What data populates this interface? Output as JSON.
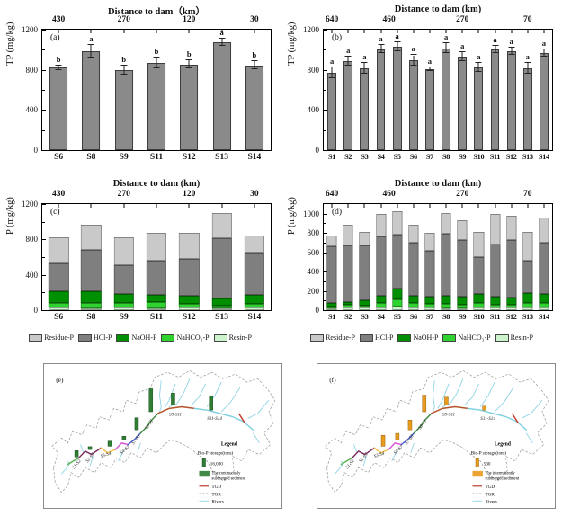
{
  "chart_data": [
    {
      "id": "a",
      "type": "bar",
      "panel": "(a)",
      "title": "Distance to dam（km）",
      "ylabel": "TP (mg/kg)",
      "ylim": [
        0,
        1200
      ],
      "yticks": [
        0,
        400,
        800,
        1200
      ],
      "yminor": [
        200,
        600,
        1000
      ],
      "top_axis_labels": [
        {
          "text": "430",
          "at": 0
        },
        {
          "text": "270",
          "at": 2
        },
        {
          "text": "120",
          "at": 4
        },
        {
          "text": "30",
          "at": 6
        }
      ],
      "categories": [
        "S6",
        "S8",
        "S9",
        "S11",
        "S12",
        "S13",
        "S14"
      ],
      "values": [
        820,
        985,
        800,
        870,
        855,
        1075,
        845
      ],
      "errors": [
        25,
        60,
        45,
        55,
        40,
        35,
        40
      ],
      "letters": [
        "b",
        "a",
        "b",
        "b",
        "b",
        "a",
        "b"
      ]
    },
    {
      "id": "b",
      "type": "bar",
      "panel": "(b)",
      "title": "Distance to dam (km)",
      "ylabel": "TP (mg/kg)",
      "ylim": [
        0,
        1200
      ],
      "yticks": [
        0,
        400,
        800,
        1200
      ],
      "yminor": [
        200,
        600,
        1000
      ],
      "top_axis_labels": [
        {
          "text": "640",
          "at": 0
        },
        {
          "text": "460",
          "at": 3.5
        },
        {
          "text": "270",
          "at": 8
        },
        {
          "text": "70",
          "at": 12
        }
      ],
      "categories": [
        "S1",
        "S2",
        "S3",
        "S4",
        "S5",
        "S6",
        "S7",
        "S8",
        "S9",
        "S10",
        "S11",
        "S12",
        "S13",
        "S14"
      ],
      "values": [
        770,
        890,
        815,
        1005,
        1030,
        895,
        805,
        1015,
        930,
        820,
        1000,
        985,
        815,
        965
      ],
      "errors": [
        55,
        45,
        55,
        40,
        45,
        50,
        20,
        50,
        45,
        45,
        35,
        35,
        50,
        35
      ],
      "letters": [
        "a",
        "a",
        "a",
        "a",
        "a",
        "a",
        "a",
        "a",
        "a",
        "a",
        "a",
        "a",
        "a",
        "a"
      ]
    },
    {
      "id": "c",
      "type": "stacked-bar",
      "panel": "(c)",
      "title": "Distance to dam (km)",
      "ylabel": "P (mg/kg)",
      "ylim": [
        0,
        1200
      ],
      "yticks": [
        0,
        400,
        800,
        1200
      ],
      "yminor": [
        200,
        600,
        1000
      ],
      "top_axis_labels": [
        {
          "text": "430",
          "at": 0
        },
        {
          "text": "270",
          "at": 2
        },
        {
          "text": "120",
          "at": 4
        },
        {
          "text": "30",
          "at": 6
        }
      ],
      "categories": [
        "S6",
        "S8",
        "S9",
        "S11",
        "S12",
        "S13",
        "S14"
      ],
      "series": [
        {
          "name": "Resin-P",
          "color": "#cdf3cd",
          "values": [
            30,
            25,
            35,
            25,
            30,
            20,
            30
          ]
        },
        {
          "name": "NaHCO₃-P",
          "color": "#2fd32f",
          "values": [
            55,
            55,
            45,
            65,
            45,
            35,
            40
          ]
        },
        {
          "name": "NaOH-P",
          "color": "#008f00",
          "values": [
            125,
            135,
            105,
            85,
            90,
            75,
            105
          ]
        },
        {
          "name": "HCl-P",
          "color": "#7f7f7f",
          "values": [
            320,
            470,
            320,
            380,
            410,
            685,
            475
          ]
        },
        {
          "name": "Residue-P",
          "color": "#c9c9c9",
          "values": [
            290,
            285,
            315,
            315,
            300,
            280,
            195
          ]
        }
      ]
    },
    {
      "id": "d",
      "type": "stacked-bar",
      "panel": "(d)",
      "title": "Distance to dam (km)",
      "ylabel": "P (mg/kg)",
      "ylim": [
        0,
        1100
      ],
      "yticks": [
        0,
        200,
        400,
        600,
        800,
        1000
      ],
      "yminor": [
        100,
        300,
        500,
        700,
        900
      ],
      "top_axis_labels": [
        {
          "text": "640",
          "at": 0
        },
        {
          "text": "460",
          "at": 3.5
        },
        {
          "text": "270",
          "at": 8
        },
        {
          "text": "70",
          "at": 12
        }
      ],
      "categories": [
        "S1",
        "S2",
        "S3",
        "S4",
        "S5",
        "S6",
        "S7",
        "S8",
        "S9",
        "S10",
        "S11",
        "S12",
        "S13",
        "S14"
      ],
      "series": [
        {
          "name": "Resin-P",
          "color": "#cdf3cd",
          "values": [
            20,
            25,
            25,
            30,
            40,
            25,
            25,
            20,
            20,
            25,
            25,
            25,
            30,
            25
          ]
        },
        {
          "name": "NaHCO₃-P",
          "color": "#2fd32f",
          "values": [
            20,
            35,
            20,
            45,
            70,
            45,
            45,
            45,
            40,
            50,
            30,
            30,
            45,
            50
          ]
        },
        {
          "name": "NaOH-P",
          "color": "#008f00",
          "values": [
            30,
            25,
            60,
            70,
            110,
            75,
            70,
            80,
            80,
            90,
            85,
            75,
            105,
            90
          ]
        },
        {
          "name": "HCl-P",
          "color": "#7f7f7f",
          "values": [
            590,
            585,
            570,
            615,
            560,
            555,
            475,
            650,
            590,
            385,
            545,
            600,
            335,
            535
          ]
        },
        {
          "name": "Residue-P",
          "color": "#c9c9c9",
          "values": [
            110,
            215,
            140,
            240,
            245,
            190,
            190,
            215,
            200,
            265,
            315,
            245,
            295,
            260
          ]
        }
      ]
    }
  ],
  "fraction_legend": [
    {
      "label": "Residue-P",
      "color": "#c9c9c9"
    },
    {
      "label": "HCl-P",
      "color": "#7f7f7f"
    },
    {
      "label": "NaOH-P",
      "color": "#008f00"
    },
    {
      "label": "NaHCO₃-P",
      "color": "#2fd32f"
    },
    {
      "label": "Resin-P",
      "color": "#cdf3cd"
    }
  ],
  "reach_segments": [
    {
      "label": "S1-S2",
      "color": "#57b14e"
    },
    {
      "label": "S2-S3",
      "color": "#7b2d5e"
    },
    {
      "label": "S3-S4",
      "color": "#f2c04a"
    },
    {
      "label": "S4-S7",
      "color": "#d84fd8"
    },
    {
      "label": "S7-S8",
      "color": "#4a5fd0"
    },
    {
      "label": "S8-S9",
      "color": "#3c8a3c"
    },
    {
      "label": "S9-S11",
      "color": "#b4522a"
    },
    {
      "label": "S11-S14",
      "color": "#7fd0e0"
    }
  ],
  "maps": {
    "colors": {
      "boundary": "#9a9a9a",
      "rivers": "#8ed4e4",
      "tgd": "#c0392b"
    },
    "e": {
      "panel": "(e)",
      "bar_color": "#2e7d32",
      "bar_stroke": "#184a1e",
      "legend": {
        "title": "Legend",
        "storage_label": "Bio-P storage(tons)",
        "unit_value": "16,000",
        "sediment_line1": "The continuously",
        "sediment_line2": "submerged sediment",
        "tgd": "TGD",
        "tgr": "TGR",
        "rivers": "Rivers"
      },
      "bars": [
        {
          "reach": "S1-S2",
          "units": 1.1
        },
        {
          "reach": "S2-S3",
          "units": 0.5
        },
        {
          "reach": "S3-S4",
          "units": 0.9
        },
        {
          "reach": "S4-S7",
          "units": 0.6
        },
        {
          "reach": "S7-S8",
          "units": 2.1
        },
        {
          "reach": "S8-S9",
          "units": 4.0
        },
        {
          "reach": "S9-S11",
          "units": 2.1
        },
        {
          "reach": "S11-S14",
          "units": 2.5
        }
      ]
    },
    "f": {
      "panel": "(f)",
      "bar_color": "#e89b1e",
      "bar_stroke": "#8f5c08",
      "legend": {
        "title": "Legend",
        "storage_label": "Bio-P storage(tons)",
        "unit_value": "530",
        "sediment_line1": "The intermittently",
        "sediment_line2": "submerged sediment",
        "tgd": "TGD",
        "tgr": "TGR",
        "rivers": "Rivers"
      },
      "bars": [
        {
          "reach": "S3-S4",
          "units": 1.9
        },
        {
          "reach": "S4-S7",
          "units": 1.1
        },
        {
          "reach": "S7-S8",
          "units": 1.7
        },
        {
          "reach": "S8-S9",
          "units": 2.9
        },
        {
          "reach": "S9-S11",
          "units": 1.4
        },
        {
          "reach": "S11-S14",
          "units": 0.7
        }
      ]
    }
  }
}
